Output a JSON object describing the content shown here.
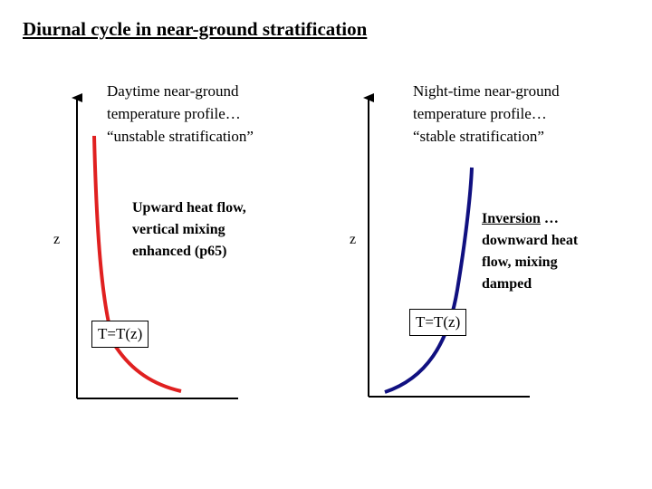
{
  "title": "Diurnal cycle in near-ground stratification",
  "left_panel": {
    "caption": "Daytime near-ground\ntemperature profile…\n“unstable stratification”",
    "z_label": "z",
    "note": "Upward heat flow,\nvertical mixing\nenhanced (p65)",
    "t_label": "T=T(z)",
    "curve_color": "#e02020"
  },
  "right_panel": {
    "caption": "Night-time near-ground\ntemperature profile…\n“stable stratification”",
    "z_label": "z",
    "note": "Inversion …\ndownward heat\nflow, mixing\ndamped",
    "note_underlined_word": "Inversion",
    "t_label": "T=T(z)",
    "curve_color": "#101080"
  }
}
